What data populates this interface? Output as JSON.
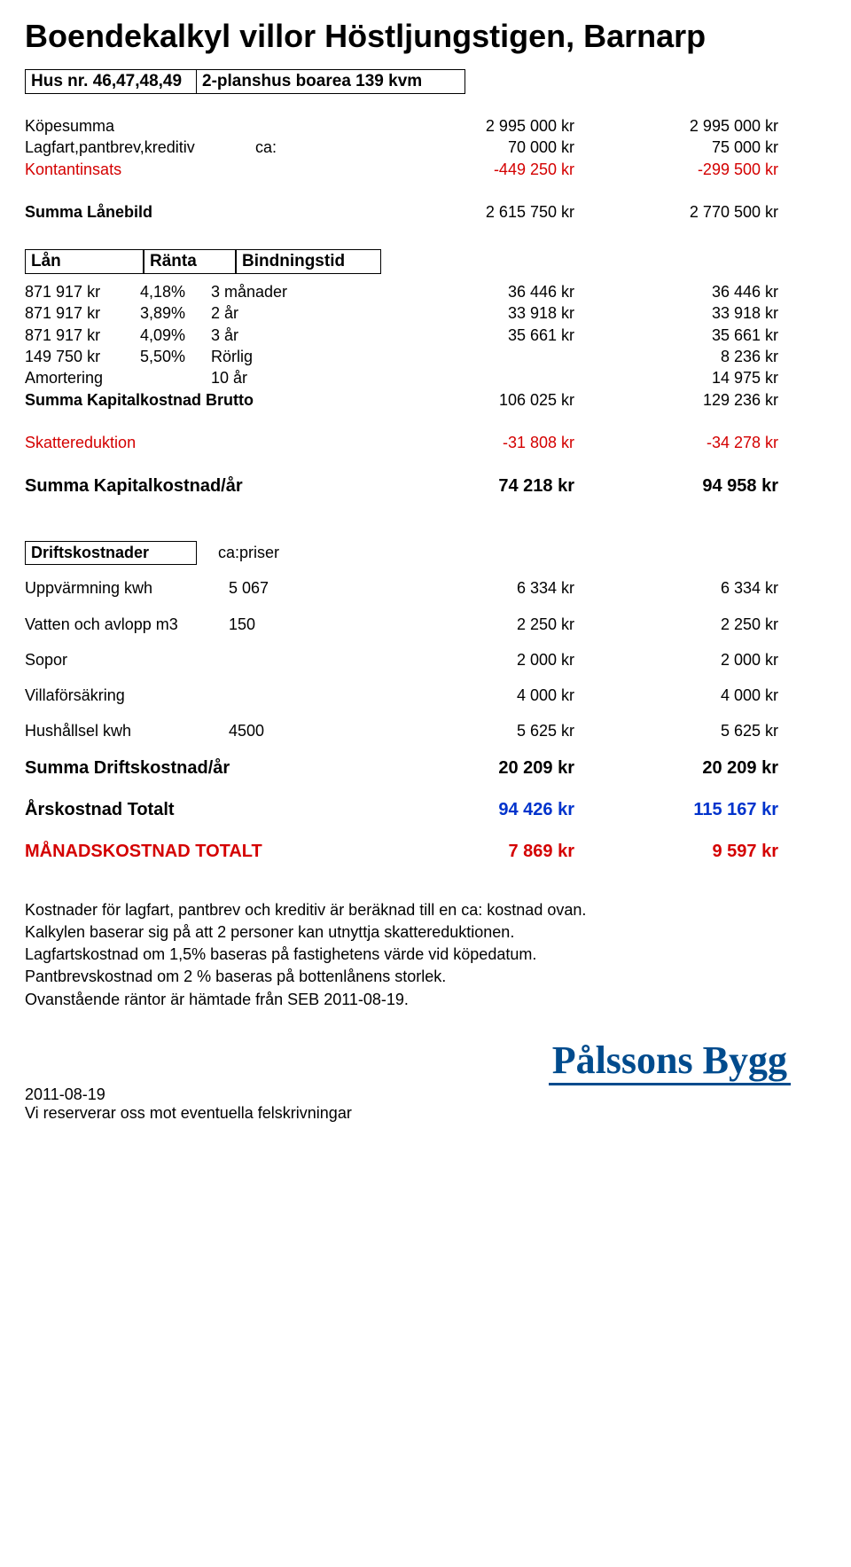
{
  "title": "Boendekalkyl villor Höstljungstigen, Barnarp",
  "hus": {
    "label": "Hus nr.",
    "value": "46,47,48,49",
    "desc": "2-planshus boarea 139 kvm"
  },
  "kopesumma": {
    "label": "Köpesumma",
    "v1": "2 995 000 kr",
    "v2": "2 995 000 kr"
  },
  "lagfart": {
    "label": "Lagfart,pantbrev,kreditiv",
    "mid": "ca:",
    "v1": "70 000 kr",
    "v2": "75 000 kr"
  },
  "kontantinsats": {
    "label": "Kontantinsats",
    "v1": "-449 250 kr",
    "v2": "-299 500 kr"
  },
  "summalane": {
    "label": "Summa Lånebild",
    "v1": "2 615 750 kr",
    "v2": "2 770 500 kr"
  },
  "lanheader": {
    "h1": "Lån",
    "h2": "Ränta",
    "h3": "Bindningstid"
  },
  "lan": [
    {
      "amount": "871 917 kr",
      "rate": "4,18%",
      "bind": "3 månader",
      "v1": "36 446 kr",
      "v2": "36 446 kr"
    },
    {
      "amount": "871 917 kr",
      "rate": "3,89%",
      "bind": "2 år",
      "v1": "33 918 kr",
      "v2": "33 918 kr"
    },
    {
      "amount": "871 917 kr",
      "rate": "4,09%",
      "bind": "3 år",
      "v1": "35 661 kr",
      "v2": "35 661 kr"
    },
    {
      "amount": "149 750 kr",
      "rate": "5,50%",
      "bind": "Rörlig",
      "v1": "",
      "v2": "8 236 kr"
    }
  ],
  "amort": {
    "label": "Amortering",
    "bind": "10 år",
    "v2": "14 975 kr"
  },
  "sumkapbrutto": {
    "label": "Summa Kapitalkostnad Brutto",
    "v1": "106 025 kr",
    "v2": "129 236 kr"
  },
  "skatt": {
    "label": "Skattereduktion",
    "v1": "-31 808 kr",
    "v2": "-34 278 kr"
  },
  "sumkapar": {
    "label": "Summa Kapitalkostnad/år",
    "v1": "74 218 kr",
    "v2": "94 958 kr"
  },
  "drift": {
    "label": "Driftskostnader",
    "capriser": "ca:priser"
  },
  "driftrows": {
    "uppv": {
      "label": "Uppvärmning kwh",
      "qty": "5 067",
      "v1": "6 334 kr",
      "v2": "6 334 kr"
    },
    "vatten": {
      "label": "Vatten och avlopp m3",
      "qty": "150",
      "v1": "2 250 kr",
      "v2": "2 250 kr"
    },
    "sopor": {
      "label": "Sopor",
      "qty": "",
      "v1": "2 000 kr",
      "v2": "2 000 kr"
    },
    "villa": {
      "label": "Villaförsäkring",
      "qty": "",
      "v1": "4 000 kr",
      "v2": "4 000 kr"
    },
    "hush": {
      "label": "Hushållsel kwh",
      "qty": "4500",
      "v1": "5 625 kr",
      "v2": "5 625 kr"
    }
  },
  "sumdrift": {
    "label": "Summa Driftskostnad/år",
    "v1": "20 209 kr",
    "v2": "20 209 kr"
  },
  "arskost": {
    "label": "Årskostnad Totalt",
    "v1": "94 426 kr",
    "v2": "115 167 kr"
  },
  "manad": {
    "label": "MÅNADSKOSTNAD TOTALT",
    "v1": "7 869 kr",
    "v2": "9 597 kr"
  },
  "footer": [
    "Kostnader för lagfart, pantbrev och kreditiv är beräknad till en ca: kostnad ovan.",
    "Kalkylen baserar sig på att 2 personer kan utnyttja skattereduktionen.",
    "Lagfartskostnad om 1,5% baseras på fastighetens värde vid köpedatum.",
    "Pantbrevskostnad om 2 % baseras på bottenlånens storlek.",
    "Ovanstående räntor är hämtade från SEB 2011-08-19."
  ],
  "brand": "Pålssons Bygg",
  "bottom": {
    "date": "2011-08-19",
    "note": "Vi reserverar oss mot eventuella felskrivningar"
  }
}
